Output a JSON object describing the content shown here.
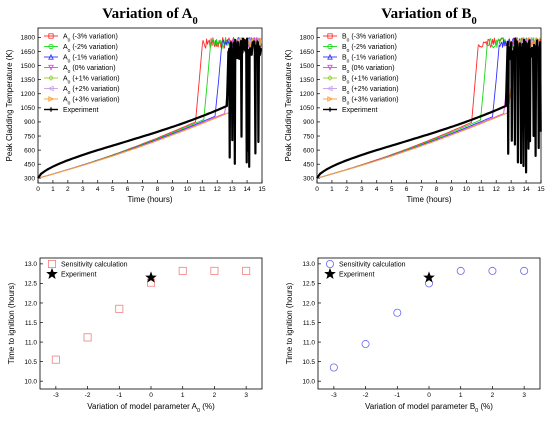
{
  "chart_data": [
    {
      "type": "line",
      "title": "Variation of A",
      "title_sub": "0",
      "xlabel": "Time (hours)",
      "ylabel": "Peak Cladding Temperature (K)",
      "xlim": [
        0,
        15
      ],
      "ylim": [
        250,
        1900
      ],
      "xticks": [
        "0",
        "1",
        "2",
        "3",
        "4",
        "5",
        "6",
        "7",
        "8",
        "9",
        "10",
        "11",
        "12",
        "13",
        "14",
        "15"
      ],
      "yticks": [
        "300",
        "450",
        "600",
        "750",
        "900",
        "1050",
        "1200",
        "1350",
        "1500",
        "1650",
        "1800"
      ],
      "legend": "top-left",
      "series": [
        {
          "name": "A",
          "sub": "0",
          "suffix": " (-3% variation)",
          "color": "#ff2a2a",
          "marker": "square",
          "ignite": 10.55,
          "base_end": 900
        },
        {
          "name": "A",
          "sub": "0",
          "suffix": " (-2% variation)",
          "color": "#18d818",
          "marker": "circle",
          "ignite": 11.1,
          "base_end": 925
        },
        {
          "name": "A",
          "sub": "0",
          "suffix": " (-1% variation)",
          "color": "#3232ff",
          "marker": "triangle",
          "ignite": 11.85,
          "base_end": 960
        },
        {
          "name": "A",
          "sub": "0",
          "suffix": " (0% variation)",
          "color": "#e045e0",
          "marker": "triangle-down",
          "ignite": 12.5,
          "base_end": 990
        },
        {
          "name": "A",
          "sub": "0",
          "suffix": " (+1% variation)",
          "color": "#9acd32",
          "marker": "diamond",
          "ignite": 12.8,
          "base_end": 1000
        },
        {
          "name": "A",
          "sub": "0",
          "suffix": " (+2% variation)",
          "color": "#c8a0e8",
          "marker": "triangle-left",
          "ignite": 12.8,
          "base_end": 1000
        },
        {
          "name": "A",
          "sub": "0",
          "suffix": " (+3% variation)",
          "color": "#ff9a30",
          "marker": "triangle-right",
          "ignite": 12.8,
          "base_end": 1000
        },
        {
          "name": "Experiment",
          "sub": "",
          "suffix": "",
          "color": "#000000",
          "marker": "plus",
          "ignite": 12.65,
          "base_end": 1070
        }
      ]
    },
    {
      "type": "line",
      "title": "Variation of B",
      "title_sub": "0",
      "xlabel": "Time (hours)",
      "ylabel": "Peak Cladding Temperature (K)",
      "xlim": [
        0,
        15
      ],
      "ylim": [
        250,
        1900
      ],
      "xticks": [
        "0",
        "1",
        "2",
        "3",
        "4",
        "5",
        "6",
        "7",
        "8",
        "9",
        "10",
        "11",
        "12",
        "13",
        "14",
        "15"
      ],
      "yticks": [
        "300",
        "450",
        "600",
        "750",
        "900",
        "1050",
        "1200",
        "1350",
        "1500",
        "1650",
        "1800"
      ],
      "legend": "top-left",
      "series": [
        {
          "name": "B",
          "sub": "0",
          "suffix": " (-3% variation)",
          "color": "#ff2a2a",
          "marker": "square",
          "ignite": 10.35,
          "base_end": 895
        },
        {
          "name": "B",
          "sub": "0",
          "suffix": " (-2% variation)",
          "color": "#18d818",
          "marker": "circle",
          "ignite": 10.95,
          "base_end": 920
        },
        {
          "name": "B",
          "sub": "0",
          "suffix": " (-1% variation)",
          "color": "#3232ff",
          "marker": "triangle",
          "ignite": 11.75,
          "base_end": 955
        },
        {
          "name": "B",
          "sub": "0",
          "suffix": " (0% variation)",
          "color": "#e045e0",
          "marker": "triangle-down",
          "ignite": 12.5,
          "base_end": 990
        },
        {
          "name": "B",
          "sub": "0",
          "suffix": " (+1% variation)",
          "color": "#9acd32",
          "marker": "diamond",
          "ignite": 12.8,
          "base_end": 1000
        },
        {
          "name": "B",
          "sub": "0",
          "suffix": " (+2% variation)",
          "color": "#c8a0e8",
          "marker": "triangle-left",
          "ignite": 12.8,
          "base_end": 1000
        },
        {
          "name": "B",
          "sub": "0",
          "suffix": " (+3% variation)",
          "color": "#ff9a30",
          "marker": "triangle-right",
          "ignite": 12.8,
          "base_end": 1000
        },
        {
          "name": "Experiment",
          "sub": "",
          "suffix": "",
          "color": "#000000",
          "marker": "plus",
          "ignite": 12.65,
          "base_end": 1070
        }
      ]
    },
    {
      "type": "scatter",
      "xlabel": "Variation of model parameter A",
      "xlabel_sub": "0",
      "xlabel_suffix": " (%)",
      "ylabel": "Time to ignition (hours)",
      "xlim": [
        -3.5,
        3.5
      ],
      "ylim": [
        9.8,
        13.15
      ],
      "xticks": [
        "-3",
        "-2",
        "-1",
        "0",
        "1",
        "2",
        "3"
      ],
      "yticks": [
        "10.0",
        "10.5",
        "11.0",
        "11.5",
        "12.0",
        "12.5",
        "13.0"
      ],
      "legend": "top-left",
      "series": [
        {
          "name": "Sensitivity calculation",
          "marker": "square",
          "color": "#f08080",
          "x": [
            -3,
            -2,
            -1,
            0,
            1,
            2,
            3
          ],
          "y": [
            10.55,
            11.12,
            11.85,
            12.52,
            12.82,
            12.82,
            12.82
          ]
        },
        {
          "name": "Experiment",
          "marker": "star",
          "color": "#000000",
          "x": [
            0
          ],
          "y": [
            12.65
          ]
        }
      ]
    },
    {
      "type": "scatter",
      "xlabel": "Variation of model parameter B",
      "xlabel_sub": "0",
      "xlabel_suffix": " (%)",
      "ylabel": "Time to ignition (hours)",
      "xlim": [
        -3.5,
        3.5
      ],
      "ylim": [
        9.8,
        13.15
      ],
      "xticks": [
        "-3",
        "-2",
        "-1",
        "0",
        "1",
        "2",
        "3"
      ],
      "yticks": [
        "10.0",
        "10.5",
        "11.0",
        "11.5",
        "12.0",
        "12.5",
        "13.0"
      ],
      "legend": "top-left",
      "series": [
        {
          "name": "Sensitivity calculation",
          "marker": "circle",
          "color": "#6a6aee",
          "x": [
            -3,
            -2,
            -1,
            0,
            1,
            2,
            3
          ],
          "y": [
            10.35,
            10.95,
            11.75,
            12.5,
            12.82,
            12.82,
            12.82
          ]
        },
        {
          "name": "Experiment",
          "marker": "star",
          "color": "#000000",
          "x": [
            0
          ],
          "y": [
            12.65
          ]
        }
      ]
    }
  ]
}
